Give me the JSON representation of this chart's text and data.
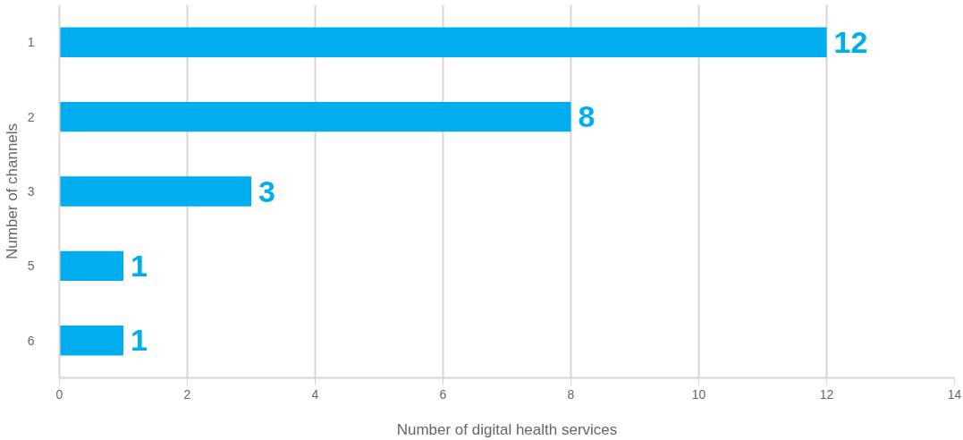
{
  "chart_data": {
    "type": "bar",
    "orientation": "horizontal",
    "xlabel": "Number of digital health services",
    "ylabel": "Number of channels",
    "categories": [
      "1",
      "2",
      "3",
      "5",
      "6"
    ],
    "values": [
      12,
      8,
      3,
      1,
      1
    ],
    "color": "#00adef",
    "xlim": [
      0,
      14
    ],
    "xticks": [
      0,
      2,
      4,
      6,
      8,
      10,
      12,
      14
    ],
    "grid": "x",
    "data_labels": true
  }
}
